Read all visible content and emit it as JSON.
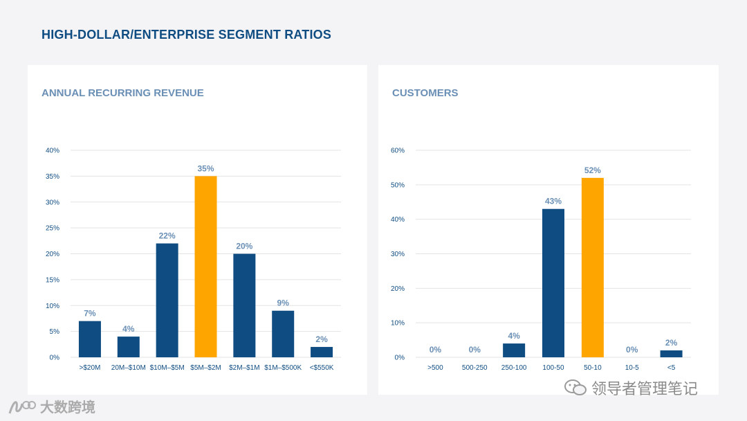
{
  "page": {
    "title": "HIGH-DOLLAR/ENTERPRISE SEGMENT RATIOS"
  },
  "colors": {
    "bar": "#0f4c81",
    "highlight": "#ffa500",
    "label": "#6a8fb5",
    "grid": "#e3e3e3",
    "axis_text": "#0f4c81"
  },
  "chart_data": [
    {
      "type": "bar",
      "title": "ANNUAL RECURRING REVENUE",
      "categories": [
        ">$20M",
        "20M–$10M",
        "$10M–$5M",
        "$5M–$2M",
        "$2M–$1M",
        "$1M–$500K",
        "<$550K"
      ],
      "values": [
        7,
        4,
        22,
        35,
        20,
        9,
        2
      ],
      "value_labels": [
        "7%",
        "4%",
        "22%",
        "35%",
        "20%",
        "9%",
        "2%"
      ],
      "highlight_index": 3,
      "ylim": [
        0,
        40
      ],
      "yticks": [
        0,
        5,
        10,
        15,
        20,
        25,
        30,
        35,
        40
      ],
      "ytick_labels": [
        "0%",
        "5%",
        "10%",
        "15%",
        "20%",
        "25%",
        "30%",
        "35%",
        "40%"
      ],
      "grid": true,
      "xlabel": "",
      "ylabel": ""
    },
    {
      "type": "bar",
      "title": "CUSTOMERS",
      "categories": [
        ">500",
        "500-250",
        "250-100",
        "100-50",
        "50-10",
        "10-5",
        "<5"
      ],
      "values": [
        0,
        0,
        4,
        43,
        52,
        0,
        2
      ],
      "value_labels": [
        "0%",
        "0%",
        "4%",
        "43%",
        "52%",
        "0%",
        "2%"
      ],
      "highlight_index": 4,
      "ylim": [
        0,
        60
      ],
      "yticks": [
        0,
        10,
        20,
        30,
        40,
        50,
        60
      ],
      "ytick_labels": [
        "0%",
        "10%",
        "20%",
        "30%",
        "40%",
        "50%",
        "60%"
      ],
      "grid": true,
      "xlabel": "",
      "ylabel": ""
    }
  ],
  "watermarks": {
    "left": "大数跨境",
    "right": "领导者管理笔记"
  }
}
